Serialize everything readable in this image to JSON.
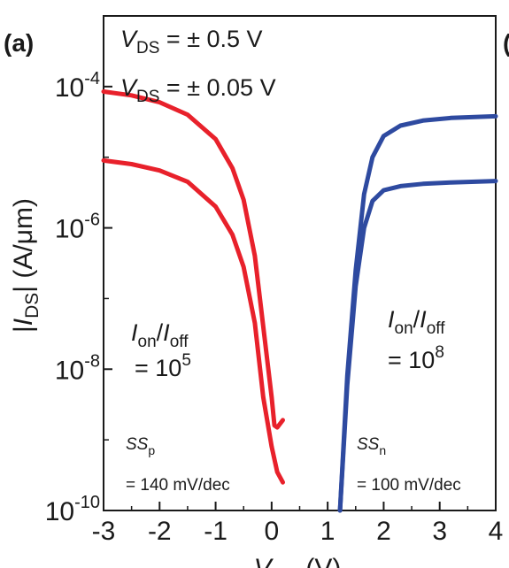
{
  "chart_data": {
    "type": "line",
    "panel_label": "(a)",
    "neighbor_panel_fragment": "(",
    "xlabel": {
      "base": "V",
      "sub": "GS",
      "unit": " (V)"
    },
    "ylabel": {
      "pre": "|",
      "base": "I",
      "sub": "DS",
      "post": "| (A/μm)"
    },
    "x_scale": "linear",
    "y_scale": "log",
    "xlim": [
      -3,
      4
    ],
    "ylim": [
      1e-10,
      0.001
    ],
    "x_ticks": [
      -3,
      -2,
      -1,
      0,
      1,
      2,
      3,
      4
    ],
    "x_tick_labels": [
      "-3",
      "-2",
      "-1",
      "0",
      "1",
      "2",
      "3",
      "4"
    ],
    "y_ticks": [
      {
        "value": 0.0001,
        "base": "10",
        "exp": "-4"
      },
      {
        "value": 1e-06,
        "base": "10",
        "exp": "-6"
      },
      {
        "value": 1e-08,
        "base": "10",
        "exp": "-8"
      },
      {
        "value": 1e-10,
        "base": "10",
        "exp": "-10"
      }
    ],
    "legend": [
      {
        "base": "V",
        "sub": "DS",
        "text": " = ± 0.5 V"
      },
      {
        "base": "V",
        "sub": "DS",
        "text": " = ± 0.05 V"
      }
    ],
    "legend_position": "top-left",
    "grid": false,
    "colors": {
      "p_type": "#e8212b",
      "n_type": "#2e4aa0"
    },
    "series": [
      {
        "color": "#e8212b",
        "x": [
          -3,
          -2.5,
          -2,
          -1.5,
          -1,
          -0.7,
          -0.5,
          -0.3,
          -0.15,
          0,
          0.05,
          0.1,
          0.2
        ],
        "y": [
          8.5e-05,
          7.5e-05,
          6e-05,
          4e-05,
          1.8e-05,
          7e-06,
          2.5e-06,
          4e-07,
          4e-08,
          4e-09,
          1.6e-09,
          1.5e-09,
          1.9e-09
        ]
      },
      {
        "color": "#e8212b",
        "x": [
          -3,
          -2.5,
          -2,
          -1.5,
          -1,
          -0.7,
          -0.5,
          -0.3,
          -0.15,
          0,
          0.1,
          0.2
        ],
        "y": [
          9e-06,
          8e-06,
          6.5e-06,
          4.5e-06,
          2e-06,
          8e-07,
          2.8e-07,
          4.5e-08,
          4e-09,
          8e-10,
          3.5e-10,
          2.5e-10
        ]
      },
      {
        "color": "#2e4aa0",
        "x": [
          1.22,
          1.35,
          1.5,
          1.65,
          1.8,
          2.0,
          2.3,
          2.7,
          3.2,
          4.0
        ],
        "y": [
          1e-10,
          8e-09,
          2.5e-07,
          3e-06,
          1e-05,
          2e-05,
          2.8e-05,
          3.3e-05,
          3.6e-05,
          3.8e-05
        ]
      },
      {
        "color": "#2e4aa0",
        "x": [
          1.22,
          1.35,
          1.5,
          1.65,
          1.8,
          2.0,
          2.3,
          2.7,
          3.2,
          4.0
        ],
        "y": [
          1e-10,
          6e-09,
          1.5e-07,
          1e-06,
          2.4e-06,
          3.4e-06,
          3.9e-06,
          4.2e-06,
          4.4e-06,
          4.6e-06
        ]
      }
    ],
    "annotations": {
      "p_ratio": {
        "num_base": "I",
        "num_sub": "on",
        "slash": "/",
        "den_base": "I",
        "den_sub": "off",
        "eq": "= 10",
        "exp": "5"
      },
      "n_ratio": {
        "num_base": "I",
        "num_sub": "on",
        "slash": "/",
        "den_base": "I",
        "den_sub": "off",
        "eq": "= 10",
        "exp": "8"
      },
      "p_ss": {
        "base": "SS",
        "sub": "p",
        "value": "= 140 mV/dec"
      },
      "n_ss": {
        "base": "SS",
        "sub": "n",
        "value": "= 100 mV/dec"
      }
    }
  }
}
